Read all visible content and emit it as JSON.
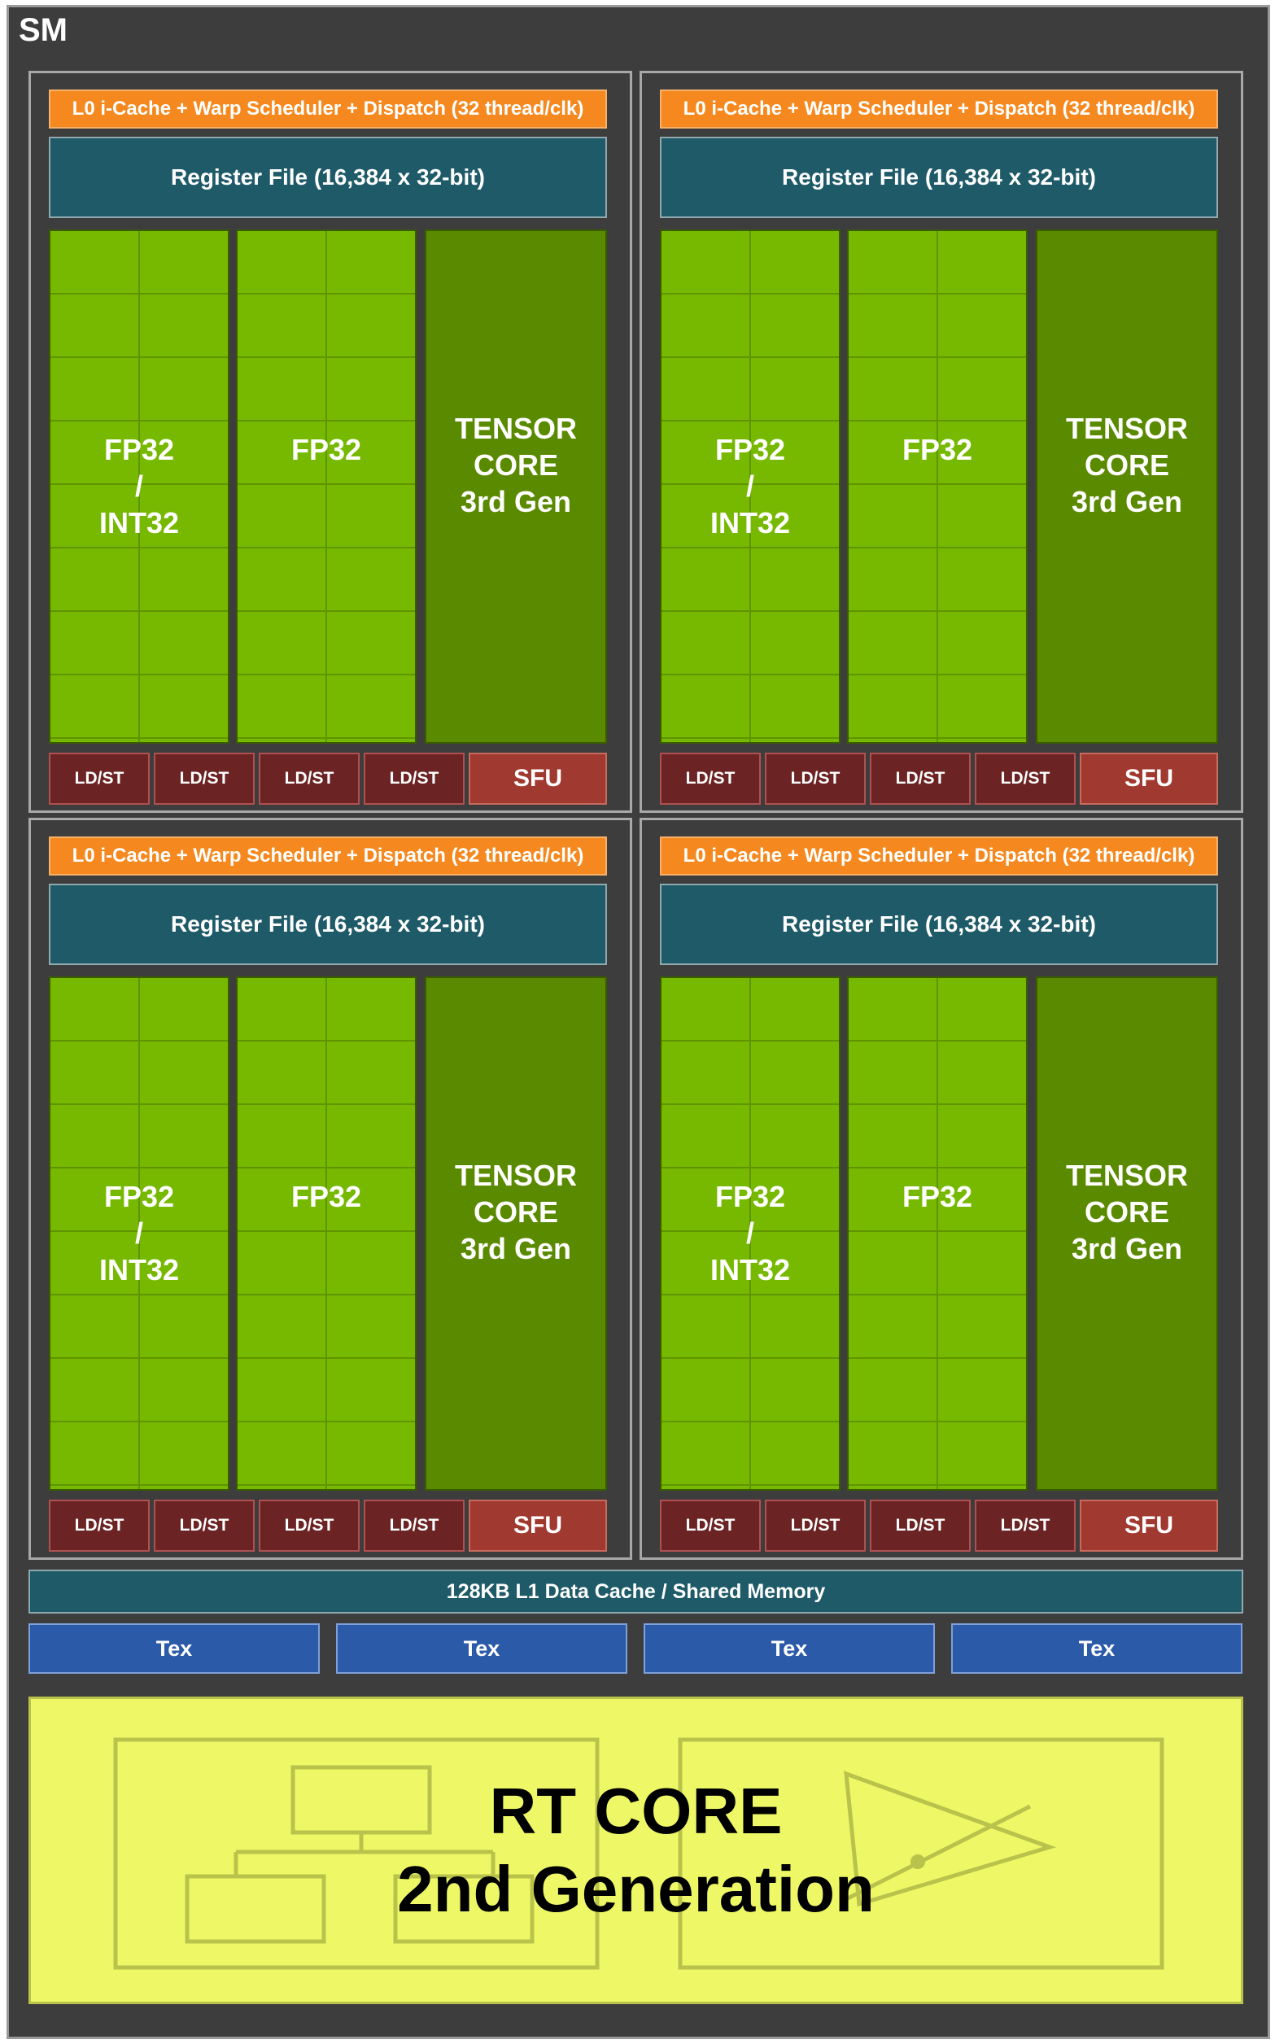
{
  "sm": {
    "title": "SM",
    "partitions": [
      {
        "scheduler": "L0 i-Cache + Warp Scheduler + Dispatch (32 thread/clk)",
        "register_file": "Register File (16,384 x 32-bit)",
        "cores": [
          {
            "lines": [
              "FP32",
              "/",
              "INT32"
            ]
          },
          {
            "lines": [
              "FP32"
            ]
          }
        ],
        "tensor": {
          "lines": [
            "TENSOR",
            "CORE",
            "3rd Gen"
          ]
        },
        "ldst": [
          "LD/ST",
          "LD/ST",
          "LD/ST",
          "LD/ST"
        ],
        "sfu": "SFU"
      },
      {
        "scheduler": "L0 i-Cache + Warp Scheduler + Dispatch (32 thread/clk)",
        "register_file": "Register File (16,384 x 32-bit)",
        "cores": [
          {
            "lines": [
              "FP32",
              "/",
              "INT32"
            ]
          },
          {
            "lines": [
              "FP32"
            ]
          }
        ],
        "tensor": {
          "lines": [
            "TENSOR",
            "CORE",
            "3rd Gen"
          ]
        },
        "ldst": [
          "LD/ST",
          "LD/ST",
          "LD/ST",
          "LD/ST"
        ],
        "sfu": "SFU"
      },
      {
        "scheduler": "L0 i-Cache + Warp Scheduler + Dispatch (32 thread/clk)",
        "register_file": "Register File (16,384 x 32-bit)",
        "cores": [
          {
            "lines": [
              "FP32",
              "/",
              "INT32"
            ]
          },
          {
            "lines": [
              "FP32"
            ]
          }
        ],
        "tensor": {
          "lines": [
            "TENSOR",
            "CORE",
            "3rd Gen"
          ]
        },
        "ldst": [
          "LD/ST",
          "LD/ST",
          "LD/ST",
          "LD/ST"
        ],
        "sfu": "SFU"
      },
      {
        "scheduler": "L0 i-Cache + Warp Scheduler + Dispatch (32 thread/clk)",
        "register_file": "Register File (16,384 x 32-bit)",
        "cores": [
          {
            "lines": [
              "FP32",
              "/",
              "INT32"
            ]
          },
          {
            "lines": [
              "FP32"
            ]
          }
        ],
        "tensor": {
          "lines": [
            "TENSOR",
            "CORE",
            "3rd Gen"
          ]
        },
        "ldst": [
          "LD/ST",
          "LD/ST",
          "LD/ST",
          "LD/ST"
        ],
        "sfu": "SFU"
      }
    ],
    "l1_cache": "128KB L1 Data Cache / Shared Memory",
    "tex_units": [
      "Tex",
      "Tex",
      "Tex",
      "Tex"
    ],
    "rt_core": {
      "line1": "RT CORE",
      "line2": "2nd Generation"
    }
  },
  "colors": {
    "background": "#3d3d3d",
    "scheduler": "#f5891f",
    "register_file": "#1e5a68",
    "cuda_core": "#76b900",
    "tensor_core": "#5a8a00",
    "ldst": "#6b2323",
    "sfu": "#a03a30",
    "tex": "#2b5aa8",
    "rt_core": "#eef866"
  }
}
